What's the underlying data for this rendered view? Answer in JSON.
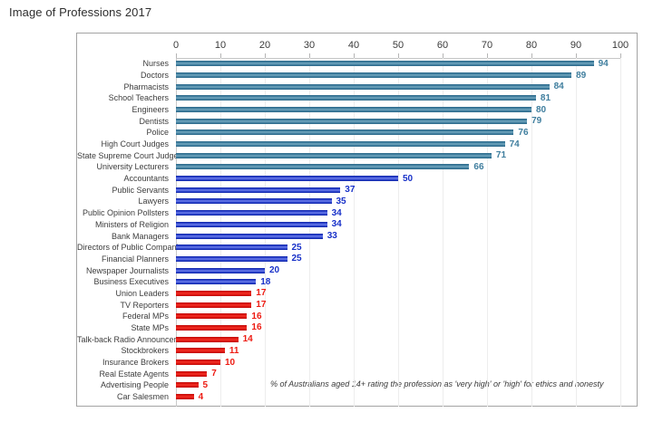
{
  "page_title": "Image of Professions 2017",
  "footnote": "% of Australians aged 14+ rating the profession as  'very high' or 'high' for ethics and honesty",
  "colors": {
    "teal_bar": "#3A7A99",
    "blue_bar": "#1B2FBE",
    "red_bar": "#E81410",
    "teal_value_label": "#3F7E9E",
    "blue_value_label": "#1730C8",
    "red_value_label": "#ED1B12"
  },
  "chart_data": {
    "type": "bar",
    "orientation": "horizontal",
    "title": "Image of Professions 2017",
    "xlabel": "",
    "ylabel": "",
    "xlim": [
      0,
      100
    ],
    "x_ticks": [
      0,
      10,
      20,
      30,
      40,
      50,
      60,
      70,
      80,
      90,
      100
    ],
    "grid": "vertical-light",
    "legend": "none",
    "annotation": "% of Australians aged 14+ rating the profession as  'very high' or 'high' for ethics and honesty",
    "categories": [
      "Nurses",
      "Doctors",
      "Pharmacists",
      "School Teachers",
      "Engineers",
      "Dentists",
      "Police",
      "High Court Judges",
      "State Supreme Court Judges",
      "University Lecturers",
      "Accountants",
      "Public Servants",
      "Lawyers",
      "Public Opinion Pollsters",
      "Ministers of Religion",
      "Bank Managers",
      "Directors of Public Companies",
      "Financial Planners",
      "Newspaper Journalists",
      "Business Executives",
      "Union Leaders",
      "TV Reporters",
      "Federal MPs",
      "State MPs",
      "Talk-back Radio Announcers",
      "Stockbrokers",
      "Insurance Brokers",
      "Real Estate Agents",
      "Advertising People",
      "Car Salesmen"
    ],
    "values": [
      94,
      89,
      84,
      81,
      80,
      79,
      76,
      74,
      71,
      66,
      50,
      37,
      35,
      34,
      34,
      33,
      25,
      25,
      20,
      18,
      17,
      17,
      16,
      16,
      14,
      11,
      10,
      7,
      5,
      4
    ],
    "groups": [
      "teal",
      "teal",
      "teal",
      "teal",
      "teal",
      "teal",
      "teal",
      "teal",
      "teal",
      "teal",
      "blue",
      "blue",
      "blue",
      "blue",
      "blue",
      "blue",
      "blue",
      "blue",
      "blue",
      "blue",
      "red",
      "red",
      "red",
      "red",
      "red",
      "red",
      "red",
      "red",
      "red",
      "red"
    ]
  }
}
